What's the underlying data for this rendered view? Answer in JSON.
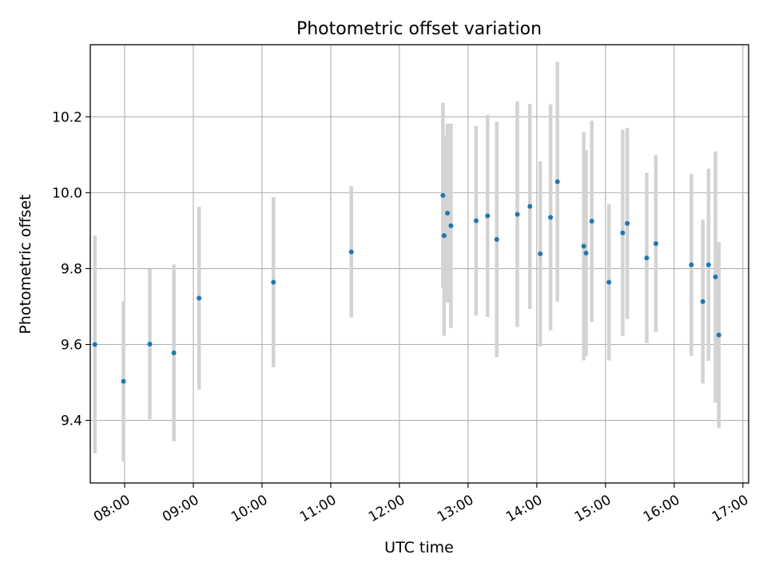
{
  "chart_data": {
    "type": "scatter",
    "title": "Photometric offset variation",
    "xlabel": "UTC time",
    "ylabel": "Photometric offset",
    "xlim": [
      "07:30",
      "17:05"
    ],
    "ylim": [
      9.235,
      10.39
    ],
    "grid": true,
    "x_ticks": [
      "08:00",
      "09:00",
      "10:00",
      "11:00",
      "12:00",
      "13:00",
      "14:00",
      "15:00",
      "16:00",
      "17:00"
    ],
    "y_ticks": [
      9.4,
      9.6,
      9.8,
      10.0,
      10.2
    ],
    "y_tick_labels": [
      "9.4",
      "9.6",
      "9.8",
      "10.0",
      "10.2"
    ],
    "point_color": "#1f77b4",
    "errorbar_color": "#d3d3d3",
    "series": [
      {
        "points": [
          {
            "t": "07:34",
            "y": 9.6,
            "err": 0.287
          },
          {
            "t": "07:59",
            "y": 9.503,
            "err": 0.212
          },
          {
            "t": "08:22",
            "y": 9.601,
            "err": 0.198
          },
          {
            "t": "08:43",
            "y": 9.578,
            "err": 0.233
          },
          {
            "t": "09:05",
            "y": 9.722,
            "err": 0.241
          },
          {
            "t": "10:10",
            "y": 9.764,
            "err": 0.224
          },
          {
            "t": "11:18",
            "y": 9.844,
            "err": 0.173
          },
          {
            "t": "12:38",
            "y": 9.993,
            "err": 0.244
          },
          {
            "t": "12:39",
            "y": 9.887,
            "err": 0.264
          },
          {
            "t": "12:42",
            "y": 9.946,
            "err": 0.236
          },
          {
            "t": "12:45",
            "y": 9.913,
            "err": 0.269
          },
          {
            "t": "13:07",
            "y": 9.926,
            "err": 0.25
          },
          {
            "t": "13:17",
            "y": 9.939,
            "err": 0.266
          },
          {
            "t": "13:25",
            "y": 9.877,
            "err": 0.31
          },
          {
            "t": "13:43",
            "y": 9.943,
            "err": 0.297
          },
          {
            "t": "13:54",
            "y": 9.964,
            "err": 0.27
          },
          {
            "t": "14:03",
            "y": 9.839,
            "err": 0.244
          },
          {
            "t": "14:12",
            "y": 9.935,
            "err": 0.298
          },
          {
            "t": "14:18",
            "y": 10.029,
            "err": 0.316
          },
          {
            "t": "14:41",
            "y": 9.859,
            "err": 0.301
          },
          {
            "t": "14:43",
            "y": 9.841,
            "err": 0.271
          },
          {
            "t": "14:48",
            "y": 9.925,
            "err": 0.265
          },
          {
            "t": "15:03",
            "y": 9.764,
            "err": 0.206
          },
          {
            "t": "15:15",
            "y": 9.894,
            "err": 0.272
          },
          {
            "t": "15:19",
            "y": 9.919,
            "err": 0.252
          },
          {
            "t": "15:36",
            "y": 9.828,
            "err": 0.224
          },
          {
            "t": "15:44",
            "y": 9.866,
            "err": 0.233
          },
          {
            "t": "16:15",
            "y": 9.81,
            "err": 0.24
          },
          {
            "t": "16:25",
            "y": 9.713,
            "err": 0.216
          },
          {
            "t": "16:30",
            "y": 9.81,
            "err": 0.253
          },
          {
            "t": "16:36",
            "y": 9.778,
            "err": 0.331
          },
          {
            "t": "16:39",
            "y": 9.625,
            "err": 0.245
          }
        ]
      }
    ]
  }
}
